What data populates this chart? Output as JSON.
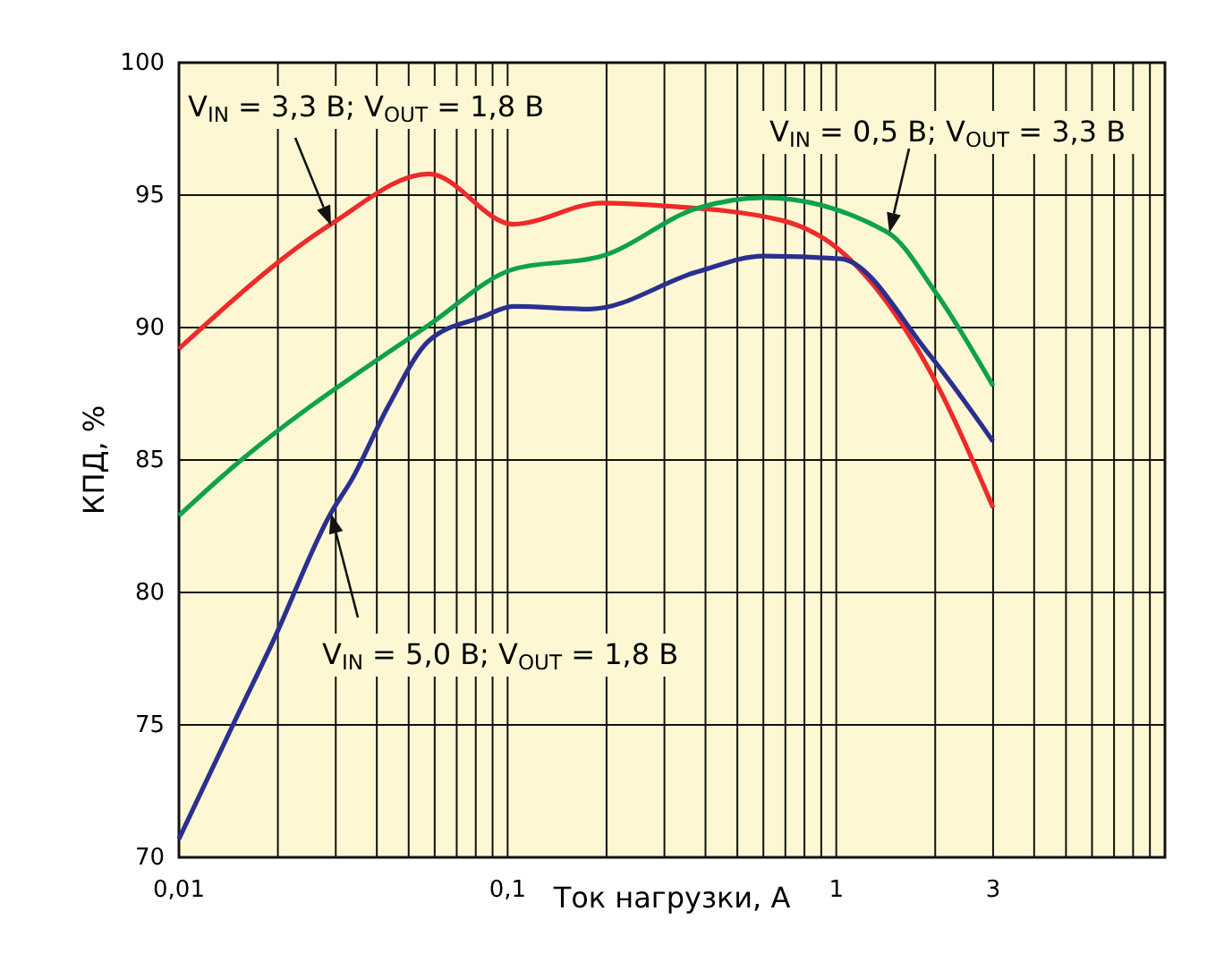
{
  "chart_data": {
    "type": "line",
    "xlabel": "Ток нагрузки, А",
    "ylabel": "КПД, %",
    "log": "x",
    "grid": true,
    "line_style": "solid",
    "xlim": [
      0.01,
      10
    ],
    "ylim": [
      70,
      100
    ],
    "xticks": [
      {
        "value": 0.01,
        "label": "0,01"
      },
      {
        "value": 0.02,
        "label": null
      },
      {
        "value": 0.03,
        "label": null
      },
      {
        "value": 0.04,
        "label": null
      },
      {
        "value": 0.05,
        "label": null
      },
      {
        "value": 0.06,
        "label": null
      },
      {
        "value": 0.07,
        "label": null
      },
      {
        "value": 0.08,
        "label": null
      },
      {
        "value": 0.09,
        "label": null
      },
      {
        "value": 0.1,
        "label": "0,1"
      },
      {
        "value": 0.2,
        "label": null
      },
      {
        "value": 0.3,
        "label": null
      },
      {
        "value": 0.4,
        "label": null
      },
      {
        "value": 0.5,
        "label": null
      },
      {
        "value": 0.6,
        "label": null
      },
      {
        "value": 0.7,
        "label": null
      },
      {
        "value": 0.8,
        "label": null
      },
      {
        "value": 0.9,
        "label": null
      },
      {
        "value": 1,
        "label": "1"
      },
      {
        "value": 2,
        "label": null
      },
      {
        "value": 3,
        "label": "3"
      },
      {
        "value": 4,
        "label": null
      },
      {
        "value": 5,
        "label": null
      },
      {
        "value": 6,
        "label": null
      },
      {
        "value": 7,
        "label": null
      },
      {
        "value": 8,
        "label": null
      },
      {
        "value": 9,
        "label": null
      },
      {
        "value": 10,
        "label": null
      }
    ],
    "yticks": [
      70,
      75,
      80,
      85,
      90,
      95,
      100
    ],
    "series": [
      {
        "color": "#ee2a2a",
        "x": [
          0.01,
          0.029,
          0.0576,
          0.104,
          0.194,
          0.294,
          0.68,
          1.03,
          1.9,
          3
        ],
        "values": [
          89.2,
          93.9,
          95.8,
          93.9,
          94.7,
          94.6,
          94.05,
          92.9,
          88.5,
          83.2
        ]
      },
      {
        "color": "#0ea24a",
        "x": [
          0.01,
          0.0133,
          0.0576,
          0.104,
          0.194,
          0.377,
          0.6,
          1.43,
          2,
          3
        ],
        "values": [
          82.9,
          84.3,
          90.1,
          92.2,
          92.7,
          94.5,
          94.9,
          93.6,
          91.35,
          87.8
        ]
      },
      {
        "color": "#2b2f8f",
        "x": [
          0.01,
          0.0146,
          0.0194,
          0.029,
          0.0337,
          0.0432,
          0.0576,
          0.0837,
          0.104,
          0.178,
          0.377,
          0.6,
          1.03,
          1.9,
          3
        ],
        "values": [
          70.7,
          75,
          78.2,
          83,
          84.3,
          87,
          89.5,
          90.4,
          90.8,
          90.7,
          92.1,
          92.7,
          92.6,
          89.05,
          85.7
        ]
      }
    ],
    "annotations": [
      "V$_{IN}$ = 3,3 В; V$_{OUT}$ = 1,8 В",
      "V$_{IN}$ = 0,5 В; V$_{OUT}$ = 3,3 В",
      "V$_{IN}$ = 5,0 В; V$_{OUT}$ = 1,8 В"
    ]
  }
}
